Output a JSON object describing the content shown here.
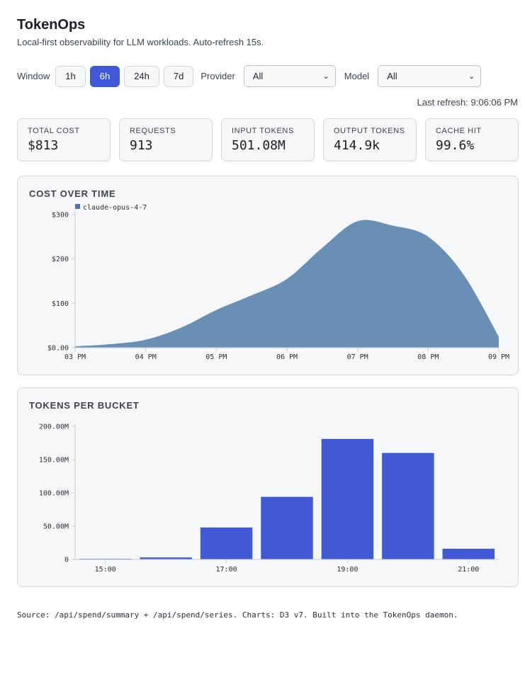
{
  "header": {
    "title": "TokenOps",
    "subtitle": "Local-first observability for LLM workloads. Auto-refresh 15s."
  },
  "controls": {
    "window_label": "Window",
    "window_options": [
      {
        "label": "1h",
        "active": false
      },
      {
        "label": "6h",
        "active": true
      },
      {
        "label": "24h",
        "active": false
      },
      {
        "label": "7d",
        "active": false
      }
    ],
    "provider_label": "Provider",
    "provider_value": "All",
    "model_label": "Model",
    "model_value": "All"
  },
  "last_refresh": "Last refresh: 9:06:06 PM",
  "kpis": [
    {
      "label": "TOTAL COST",
      "value": "$813"
    },
    {
      "label": "REQUESTS",
      "value": "913"
    },
    {
      "label": "INPUT TOKENS",
      "value": "501.08M"
    },
    {
      "label": "OUTPUT TOKENS",
      "value": "414.9k"
    },
    {
      "label": "CACHE HIT",
      "value": "99.6%"
    }
  ],
  "colors": {
    "accent": "#4059d8",
    "area_fill": "#6a8fb5",
    "legend_swatch": "#4e76a6",
    "bar_fill": "#4259d6",
    "axis": "#c6ccd6"
  },
  "chart_data": [
    {
      "type": "area",
      "title": "COST OVER TIME",
      "legend": [
        "claude-opus-4-7"
      ],
      "legend_placement": "top-left",
      "x": [
        "03 PM",
        "03:30 PM",
        "04 PM",
        "04:30 PM",
        "05 PM",
        "05:30 PM",
        "06 PM",
        "06:30 PM",
        "07 PM",
        "07:30 PM",
        "08 PM",
        "08:30 PM",
        "09 PM"
      ],
      "series": [
        {
          "name": "claude-opus-4-7",
          "values": [
            3,
            8,
            18,
            45,
            85,
            118,
            155,
            225,
            285,
            275,
            250,
            165,
            25
          ]
        }
      ],
      "x_ticks": [
        "03 PM",
        "04 PM",
        "05 PM",
        "06 PM",
        "07 PM",
        "08 PM",
        "09 PM"
      ],
      "y_ticks": [
        "$0.00",
        "$100",
        "$200",
        "$300"
      ],
      "y_tick_values": [
        0,
        100,
        200,
        300
      ],
      "ylim": [
        0,
        300
      ],
      "grid": false
    },
    {
      "type": "bar",
      "title": "TOKENS PER BUCKET",
      "categories": [
        "15:00",
        "16:00",
        "17:00",
        "18:00",
        "19:00",
        "20:00",
        "21:00"
      ],
      "series": [
        {
          "values": [
            1,
            3,
            48,
            94,
            181,
            160,
            16
          ]
        }
      ],
      "x_ticks": [
        "15:00",
        "17:00",
        "19:00",
        "21:00"
      ],
      "y_ticks": [
        "0",
        "50.00M",
        "100.00M",
        "150.00M",
        "200.00M"
      ],
      "y_tick_values": [
        0,
        50,
        100,
        150,
        200
      ],
      "ylim": [
        0,
        200
      ],
      "grid": false
    }
  ],
  "footer": "Source: /api/spend/summary + /api/spend/series. Charts: D3 v7. Built into the TokenOps daemon."
}
